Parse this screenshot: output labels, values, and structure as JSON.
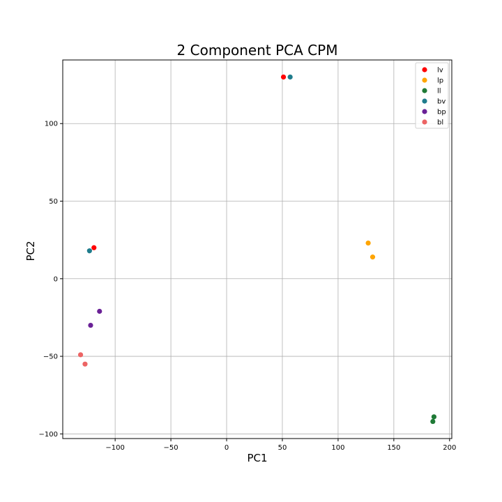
{
  "chart_data": {
    "type": "scatter",
    "title": "2 Component PCA CPM",
    "xlabel": "PC1",
    "ylabel": "PC2",
    "xlim": [
      -147,
      202
    ],
    "ylim": [
      -103,
      141
    ],
    "xticks": [
      -100,
      -50,
      0,
      50,
      100,
      150,
      200
    ],
    "yticks": [
      -100,
      -50,
      0,
      50,
      100
    ],
    "xtick_labels": [
      "−100",
      "−50",
      "0",
      "50",
      "100",
      "150",
      "200"
    ],
    "ytick_labels": [
      "−100",
      "−50",
      "0",
      "50",
      "100"
    ],
    "grid": true,
    "legend_position": "top-right",
    "series": [
      {
        "name": "lv",
        "color": "#ff0000",
        "points": [
          [
            51,
            130
          ],
          [
            -119,
            20
          ]
        ]
      },
      {
        "name": "lp",
        "color": "#ffa500",
        "points": [
          [
            127,
            23
          ],
          [
            131,
            14
          ]
        ]
      },
      {
        "name": "ll",
        "color": "#1f7a36",
        "points": [
          [
            186,
            -89
          ],
          [
            185,
            -92
          ]
        ]
      },
      {
        "name": "bv",
        "color": "#1f7c8c",
        "points": [
          [
            57,
            130
          ],
          [
            -123,
            18
          ]
        ]
      },
      {
        "name": "bp",
        "color": "#6a2196",
        "points": [
          [
            -114,
            -21
          ],
          [
            -122,
            -30
          ]
        ]
      },
      {
        "name": "bl",
        "color": "#ec6464",
        "points": [
          [
            -131,
            -49
          ],
          [
            -127,
            -55
          ]
        ]
      }
    ]
  }
}
